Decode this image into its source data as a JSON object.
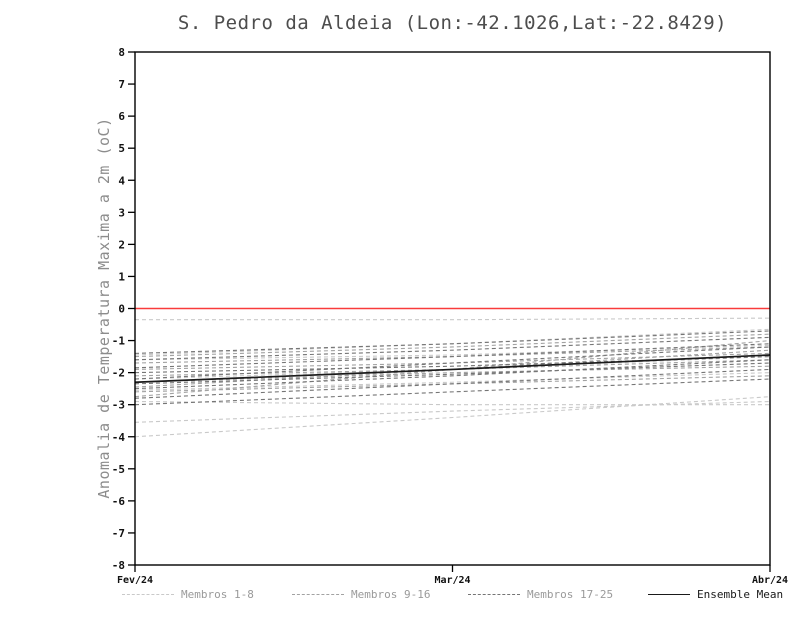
{
  "title": "S. Pedro da Aldeia (Lon:-42.1026,Lat:-22.8429)",
  "ylabel": "Anomalia de Temperatura Maxima a 2m (oC)",
  "chart_data": {
    "type": "line",
    "title": "S. Pedro da Aldeia (Lon:-42.1026,Lat:-22.8429)",
    "ylabel": "Anomalia de Temperatura Maxima a 2m (oC)",
    "ylim": [
      -8,
      8
    ],
    "ytick_step": 1,
    "x_categories": [
      "Fev/24",
      "Mar/24",
      "Abr/24"
    ],
    "grid": false,
    "legend_position": "bottom",
    "zero_line": {
      "y": 0,
      "color": "#f93b3b"
    },
    "series": [
      {
        "name": "Membros 1-8",
        "label": "Membros 1-8",
        "color": "#c9c9c9",
        "style": "dashed",
        "members": [
          [
            -0.35,
            -0.35,
            -0.3
          ],
          [
            -1.45,
            -1.1,
            -0.65
          ],
          [
            -1.6,
            -1.45,
            -1.15
          ],
          [
            -2.2,
            -1.9,
            -1.5
          ],
          [
            -2.55,
            -2.3,
            -2.0
          ],
          [
            -2.9,
            -3.0,
            -3.0
          ],
          [
            -3.55,
            -3.2,
            -2.9
          ],
          [
            -4.0,
            -3.4,
            -2.75
          ]
        ]
      },
      {
        "name": "Membros 9-16",
        "label": "Membros 9-16",
        "color": "#a2a2a2",
        "style": "dashed",
        "members": [
          [
            -1.5,
            -1.2,
            -0.8
          ],
          [
            -1.7,
            -1.5,
            -1.2
          ],
          [
            -1.9,
            -1.7,
            -1.4
          ],
          [
            -2.1,
            -1.9,
            -1.6
          ],
          [
            -2.3,
            -2.0,
            -1.8
          ],
          [
            -2.45,
            -1.9,
            -1.3
          ],
          [
            -2.6,
            -2.35,
            -2.1
          ],
          [
            -2.75,
            -1.9,
            -1.0
          ]
        ]
      },
      {
        "name": "Membros 17-25",
        "label": "Membros 17-25",
        "color": "#757575",
        "style": "dashed",
        "members": [
          [
            -1.4,
            -1.1,
            -0.7
          ],
          [
            -1.6,
            -1.3,
            -0.9
          ],
          [
            -1.85,
            -1.5,
            -1.1
          ],
          [
            -2.0,
            -1.8,
            -1.5
          ],
          [
            -2.2,
            -1.7,
            -1.2
          ],
          [
            -2.35,
            -2.05,
            -1.7
          ],
          [
            -2.5,
            -2.1,
            -1.6
          ],
          [
            -2.8,
            -2.35,
            -1.9
          ],
          [
            -3.0,
            -2.6,
            -2.2
          ]
        ]
      },
      {
        "name": "Ensemble Mean",
        "label": "Ensemble Mean",
        "color": "#1a1a1a",
        "style": "solid",
        "members": [
          [
            -2.3,
            -1.9,
            -1.45
          ]
        ]
      }
    ]
  }
}
